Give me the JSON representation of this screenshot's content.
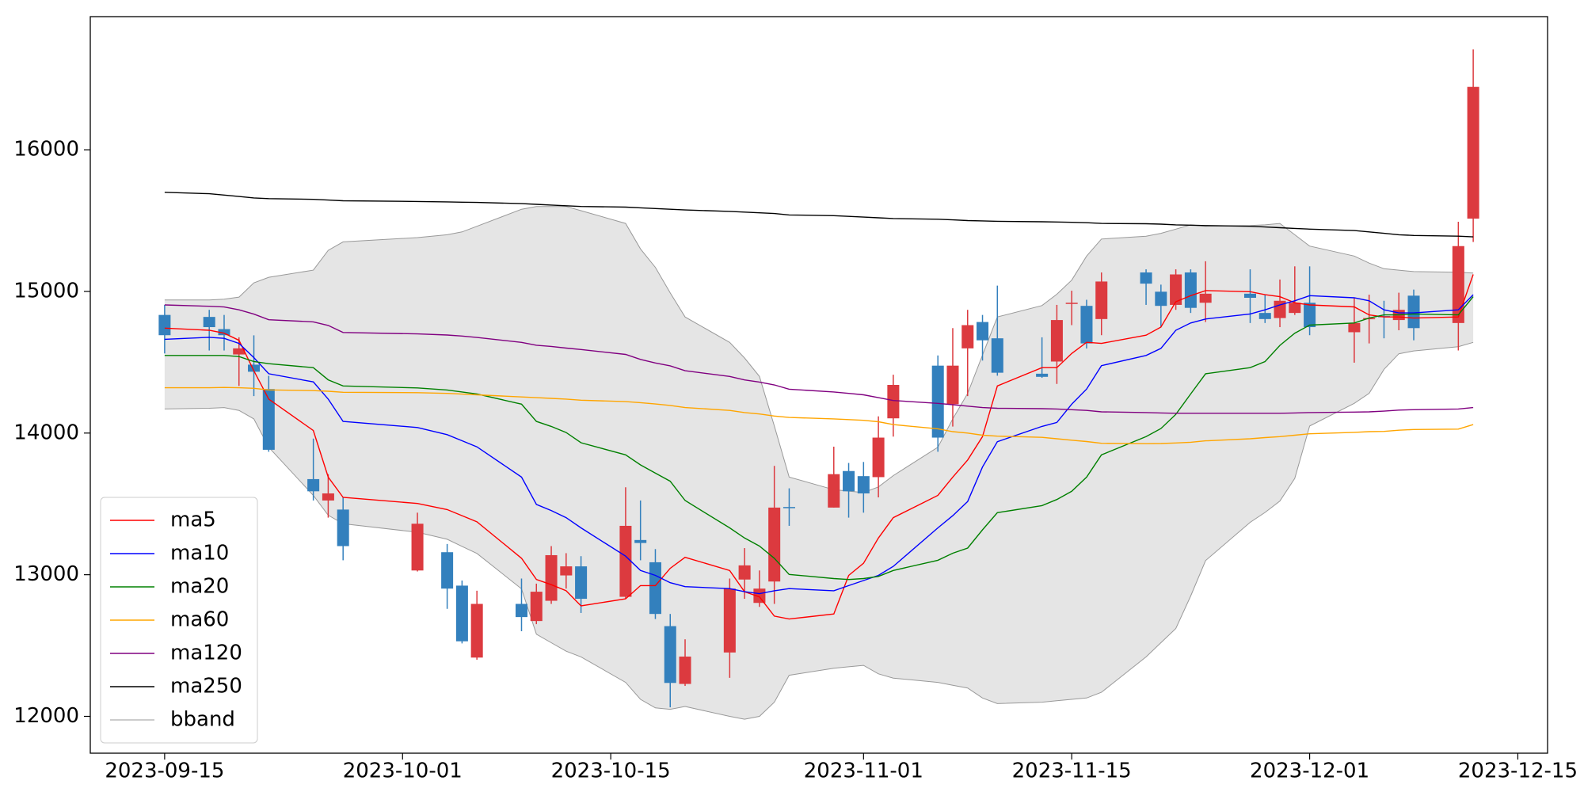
{
  "chart_data": {
    "type": "candlestick",
    "x": [
      "2023-09-15",
      "2023-09-18",
      "2023-09-19",
      "2023-09-20",
      "2023-09-21",
      "2023-09-22",
      "2023-09-25",
      "2023-09-26",
      "2023-09-27",
      "2023-10-02",
      "2023-10-04",
      "2023-10-05",
      "2023-10-06",
      "2023-10-09",
      "2023-10-10",
      "2023-10-11",
      "2023-10-12",
      "2023-10-13",
      "2023-10-16",
      "2023-10-17",
      "2023-10-18",
      "2023-10-19",
      "2023-10-20",
      "2023-10-23",
      "2023-10-24",
      "2023-10-25",
      "2023-10-26",
      "2023-10-27",
      "2023-10-30",
      "2023-10-31",
      "2023-11-01",
      "2023-11-02",
      "2023-11-03",
      "2023-11-06",
      "2023-11-07",
      "2023-11-08",
      "2023-11-09",
      "2023-11-10",
      "2023-11-13",
      "2023-11-14",
      "2023-11-15",
      "2023-11-16",
      "2023-11-17",
      "2023-11-20",
      "2023-11-21",
      "2023-11-22",
      "2023-11-23",
      "2023-11-24",
      "2023-11-27",
      "2023-11-28",
      "2023-11-29",
      "2023-11-30",
      "2023-12-01",
      "2023-12-04",
      "2023-12-05",
      "2023-12-06",
      "2023-12-07",
      "2023-12-08",
      "2023-12-11",
      "2023-12-12"
    ],
    "open": [
      14834,
      14820,
      14734,
      14555,
      14483,
      14311,
      13675,
      13524,
      13460,
      13030,
      13159,
      12923,
      12415,
      12794,
      12673,
      12816,
      12995,
      13059,
      12844,
      13245,
      13088,
      12637,
      12229,
      12451,
      12966,
      12801,
      12952,
      13478,
      13474,
      13732,
      13696,
      13689,
      14104,
      14476,
      14204,
      14598,
      14784,
      14669,
      14419,
      14505,
      14912,
      14898,
      14805,
      15134,
      14998,
      14905,
      15134,
      14920,
      14984,
      14848,
      14812,
      14848,
      14920,
      14712,
      14812,
      14826,
      14798,
      14970,
      14777,
      15514
    ],
    "high": [
      14905,
      14870,
      14834,
      14676,
      14690,
      14404,
      13961,
      13710,
      13546,
      13438,
      13217,
      12959,
      12887,
      12973,
      12937,
      13202,
      13152,
      13131,
      13617,
      13524,
      13181,
      12723,
      12544,
      12973,
      13188,
      13030,
      13768,
      13610,
      13904,
      13789,
      13796,
      14118,
      14412,
      14548,
      14741,
      14870,
      14834,
      15041,
      14676,
      14905,
      15005,
      14941,
      15134,
      15156,
      15048,
      15156,
      15156,
      15213,
      15156,
      14977,
      15084,
      15177,
      15177,
      14955,
      14977,
      14934,
      14991,
      15013,
      15492,
      16709
    ],
    "low": [
      14562,
      14583,
      14583,
      14333,
      14261,
      13868,
      13524,
      13403,
      13102,
      13023,
      12759,
      12515,
      12400,
      12601,
      12651,
      12794,
      12902,
      12730,
      12830,
      13102,
      12687,
      12064,
      12215,
      12272,
      12830,
      12773,
      12794,
      13345,
      13474,
      13403,
      13438,
      13546,
      13975,
      13868,
      14046,
      14261,
      14512,
      14405,
      14390,
      14347,
      14762,
      14597,
      14691,
      14905,
      14748,
      14870,
      14848,
      14784,
      14777,
      14777,
      14748,
      14834,
      14691,
      14497,
      14633,
      14669,
      14726,
      14655,
      14583,
      15349
    ],
    "close": [
      14691,
      14748,
      14691,
      14598,
      14433,
      13882,
      13589,
      13574,
      13202,
      13360,
      12902,
      12530,
      12794,
      12701,
      12880,
      13138,
      13059,
      12830,
      13345,
      13224,
      12723,
      12236,
      12422,
      12902,
      13066,
      12902,
      13474,
      13474,
      13710,
      13589,
      13574,
      13968,
      14340,
      13968,
      14476,
      14762,
      14655,
      14426,
      14397,
      14798,
      14920,
      14633,
      15070,
      15055,
      14898,
      15120,
      14884,
      14984,
      14955,
      14805,
      14934,
      14920,
      14748,
      14777,
      14812,
      14820,
      14870,
      14741,
      15320,
      16444
    ],
    "up_color": "#dc3a3f",
    "down_color": "#3380bd",
    "series": [
      {
        "name": "ma5",
        "color": "#ff0000",
        "values": [
          14741,
          14726,
          14705,
          14655,
          14440,
          14240,
          14018,
          13689,
          13546,
          13503,
          13460,
          13417,
          13374,
          13116,
          12966,
          12930,
          12887,
          12780,
          12830,
          12923,
          12923,
          13045,
          13123,
          13030,
          12880,
          12844,
          12708,
          12687,
          12723,
          12995,
          13081,
          13259,
          13403,
          13560,
          13689,
          13810,
          13975,
          14333,
          14462,
          14462,
          14562,
          14641,
          14633,
          14691,
          14748,
          14927,
          14970,
          15006,
          14998,
          14977,
          14963,
          14920,
          14905,
          14891,
          14834,
          14820,
          14820,
          14812,
          14820,
          15120
        ]
      },
      {
        "name": "ma10",
        "color": "#0000ff",
        "values": [
          14662,
          14676,
          14669,
          14633,
          14533,
          14419,
          14361,
          14240,
          14082,
          14039,
          13989,
          13946,
          13903,
          13689,
          13496,
          13453,
          13403,
          13331,
          13131,
          13030,
          12995,
          12944,
          12916,
          12902,
          12880,
          12866,
          12887,
          12902,
          12887,
          12923,
          12959,
          12995,
          13059,
          13331,
          13417,
          13517,
          13760,
          13939,
          14047,
          14075,
          14204,
          14311,
          14476,
          14548,
          14598,
          14726,
          14777,
          14805,
          14841,
          14870,
          14905,
          14934,
          14970,
          14955,
          14934,
          14870,
          14848,
          14848,
          14870,
          14977
        ]
      },
      {
        "name": "ma20",
        "color": "#008000",
        "values": [
          14548,
          14548,
          14548,
          14540,
          14505,
          14490,
          14462,
          14376,
          14333,
          14319,
          14304,
          14290,
          14276,
          14204,
          14082,
          14047,
          14004,
          13932,
          13846,
          13775,
          13717,
          13660,
          13524,
          13331,
          13259,
          13202,
          13116,
          13002,
          12973,
          12966,
          12973,
          12988,
          13030,
          13102,
          13152,
          13188,
          13317,
          13438,
          13488,
          13531,
          13589,
          13689,
          13846,
          13975,
          14032,
          14132,
          14276,
          14419,
          14462,
          14505,
          14619,
          14705,
          14762,
          14777,
          14812,
          14834,
          14834,
          14841,
          14834,
          14963
        ]
      },
      {
        "name": "ma60",
        "color": "#ffa500",
        "values": [
          14320,
          14320,
          14322,
          14320,
          14316,
          14305,
          14300,
          14295,
          14288,
          14285,
          14280,
          14275,
          14270,
          14255,
          14250,
          14245,
          14240,
          14232,
          14222,
          14215,
          14205,
          14195,
          14180,
          14160,
          14145,
          14135,
          14120,
          14110,
          14100,
          14095,
          14090,
          14080,
          14060,
          14030,
          14010,
          14000,
          13985,
          13978,
          13970,
          13960,
          13950,
          13940,
          13928,
          13925,
          13926,
          13930,
          13935,
          13945,
          13960,
          13968,
          13975,
          13985,
          13995,
          14005,
          14010,
          14012,
          14020,
          14025,
          14028,
          14060
        ]
      },
      {
        "name": "ma120",
        "color": "#800080",
        "values": [
          14905,
          14895,
          14890,
          14870,
          14840,
          14800,
          14785,
          14760,
          14710,
          14700,
          14692,
          14685,
          14675,
          14640,
          14620,
          14612,
          14600,
          14590,
          14555,
          14520,
          14495,
          14475,
          14440,
          14400,
          14375,
          14360,
          14340,
          14310,
          14290,
          14280,
          14270,
          14250,
          14230,
          14210,
          14200,
          14190,
          14180,
          14175,
          14172,
          14170,
          14165,
          14160,
          14150,
          14145,
          14142,
          14140,
          14140,
          14140,
          14140,
          14140,
          14140,
          14142,
          14145,
          14148,
          14150,
          14155,
          14162,
          14165,
          14170,
          14180
        ]
      },
      {
        "name": "ma250",
        "color": "#000000",
        "values": [
          15700,
          15690,
          15680,
          15670,
          15660,
          15655,
          15650,
          15645,
          15640,
          15635,
          15632,
          15630,
          15628,
          15620,
          15615,
          15610,
          15605,
          15600,
          15595,
          15590,
          15585,
          15580,
          15575,
          15565,
          15560,
          15555,
          15550,
          15540,
          15535,
          15530,
          15525,
          15520,
          15515,
          15510,
          15505,
          15500,
          15498,
          15495,
          15492,
          15490,
          15488,
          15485,
          15480,
          15478,
          15475,
          15470,
          15468,
          15465,
          15460,
          15455,
          15450,
          15445,
          15440,
          15430,
          15420,
          15410,
          15400,
          15395,
          15390,
          15385
        ]
      }
    ],
    "band": {
      "name": "bband",
      "color": "#999999",
      "fill": "#e5e5e5",
      "upper": [
        14940,
        14940,
        14945,
        14960,
        15060,
        15100,
        15150,
        15290,
        15350,
        15380,
        15400,
        15420,
        15460,
        15580,
        15600,
        15600,
        15600,
        15570,
        15480,
        15300,
        15170,
        14990,
        14820,
        14640,
        14530,
        14400,
        14050,
        13690,
        13600,
        13590,
        13580,
        13620,
        13700,
        13900,
        14100,
        14280,
        14550,
        14820,
        14900,
        14980,
        15080,
        15250,
        15370,
        15390,
        15410,
        15440,
        15470,
        15460,
        15465,
        15470,
        15480,
        15400,
        15320,
        15250,
        15200,
        15160,
        15150,
        15140,
        15135,
        15130
      ],
      "lower": [
        14170,
        14175,
        14180,
        14160,
        14100,
        13900,
        13560,
        13420,
        13360,
        13300,
        13250,
        13200,
        13150,
        12900,
        12580,
        12520,
        12460,
        12420,
        12240,
        12120,
        12060,
        12050,
        12070,
        12000,
        11980,
        12000,
        12100,
        12290,
        12340,
        12350,
        12360,
        12300,
        12270,
        12240,
        12220,
        12200,
        12130,
        12090,
        12100,
        12110,
        12120,
        12130,
        12170,
        12420,
        12520,
        12620,
        12850,
        13100,
        13370,
        13440,
        13520,
        13680,
        14050,
        14210,
        14280,
        14450,
        14560,
        14580,
        14610,
        14640
      ]
    },
    "xlim": [
      "2023-09-10",
      "2023-12-17"
    ],
    "xticks": [
      "2023-09-15",
      "2023-10-01",
      "2023-10-15",
      "2023-11-01",
      "2023-11-15",
      "2023-12-01",
      "2023-12-15"
    ],
    "ylim": [
      11740,
      16940
    ],
    "yticks": [
      12000,
      13000,
      14000,
      15000,
      16000
    ],
    "legend": "lower left"
  }
}
